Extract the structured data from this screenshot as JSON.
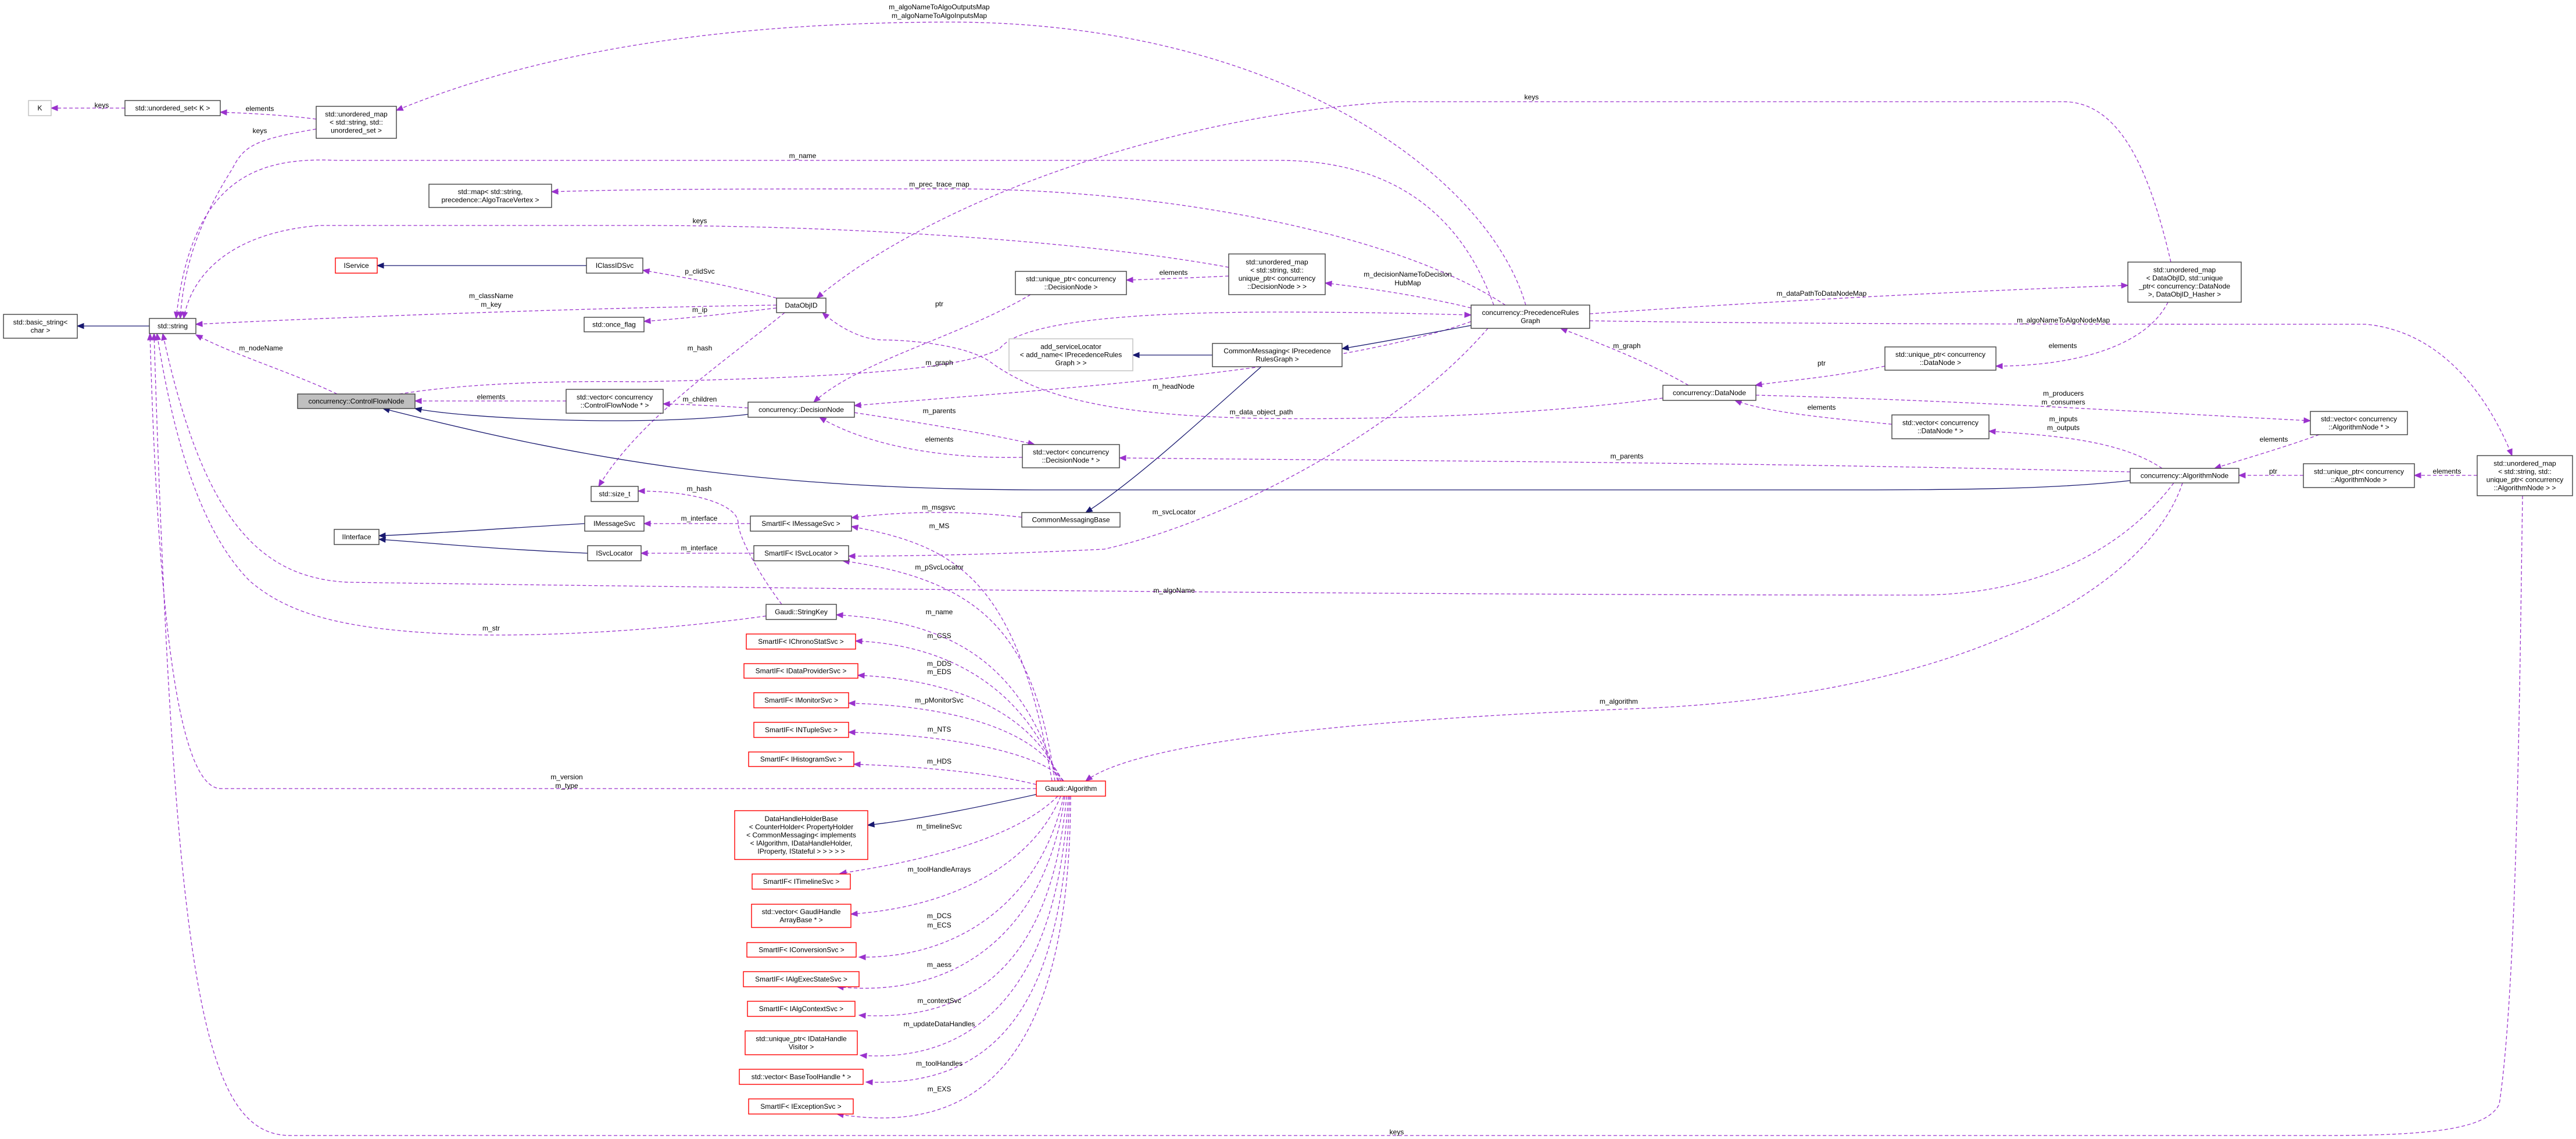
{
  "colors": {
    "usage_edge": "#9a32cd",
    "inheritance_edge": "#191970",
    "undocumented_border": "#ff0000",
    "focus_fill": "#bfbfbf"
  },
  "nodes": [
    {
      "label": [
        "K"
      ],
      "style": "gray"
    },
    {
      "label": [
        "std::unordered_set< K >"
      ],
      "style": "normal"
    },
    {
      "label": [
        "std::unordered_map",
        "< std::string, std::",
        "unordered_set >"
      ],
      "style": "normal"
    },
    {
      "label": [
        "std::map< std::string,",
        "precedence::AlgoTraceVertex >"
      ],
      "style": "normal"
    },
    {
      "label": [
        "IService"
      ],
      "style": "red"
    },
    {
      "label": [
        "IClassIDSvc"
      ],
      "style": "normal"
    },
    {
      "label": [
        "std::basic_string<",
        "char >"
      ],
      "style": "normal"
    },
    {
      "label": [
        "std::string"
      ],
      "style": "normal"
    },
    {
      "label": [
        "std::once_flag"
      ],
      "style": "normal"
    },
    {
      "label": [
        "DataObjID"
      ],
      "style": "normal"
    },
    {
      "label": [
        "std::unique_ptr< concurrency",
        "::DecisionNode >"
      ],
      "style": "normal"
    },
    {
      "label": [
        "std::unordered_map",
        "< std::string, std::",
        "unique_ptr< concurrency",
        "::DecisionNode > >"
      ],
      "style": "normal"
    },
    {
      "label": [
        "concurrency::PrecedenceRules",
        "Graph"
      ],
      "style": "normal"
    },
    {
      "label": [
        "std::unordered_map",
        "< DataObjID, std::unique",
        "_ptr< concurrency::DataNode",
        ">, DataObjID_Hasher >"
      ],
      "style": "normal"
    },
    {
      "label": [
        "add_serviceLocator",
        "< add_name< IPrecedenceRules",
        "Graph > >"
      ],
      "style": "gray"
    },
    {
      "label": [
        "CommonMessaging< IPrecedence",
        "RulesGraph >"
      ],
      "style": "normal"
    },
    {
      "label": [
        "concurrency::ControlFlowNode"
      ],
      "style": "focus"
    },
    {
      "label": [
        "std::vector< concurrency",
        "::ControlFlowNode * >"
      ],
      "style": "normal"
    },
    {
      "label": [
        "concurrency::DecisionNode"
      ],
      "style": "normal"
    },
    {
      "label": [
        "std::vector< concurrency",
        "::DecisionNode * >"
      ],
      "style": "normal"
    },
    {
      "label": [
        "concurrency::DataNode"
      ],
      "style": "normal"
    },
    {
      "label": [
        "std::unique_ptr< concurrency",
        "::DataNode >"
      ],
      "style": "normal"
    },
    {
      "label": [
        "std::vector< concurrency",
        "::DataNode * >"
      ],
      "style": "normal"
    },
    {
      "label": [
        "std::vector< concurrency",
        "::AlgorithmNode * >"
      ],
      "style": "normal"
    },
    {
      "label": [
        "concurrency::AlgorithmNode"
      ],
      "style": "normal"
    },
    {
      "label": [
        "std::unique_ptr< concurrency",
        "::AlgorithmNode >"
      ],
      "style": "normal"
    },
    {
      "label": [
        "std::unordered_map",
        "< std::string, std::",
        "unique_ptr< concurrency",
        "::AlgorithmNode > >"
      ],
      "style": "normal"
    },
    {
      "label": [
        "std::size_t"
      ],
      "style": "normal"
    },
    {
      "label": [
        "IInterface"
      ],
      "style": "normal"
    },
    {
      "label": [
        "IMessageSvc"
      ],
      "style": "normal"
    },
    {
      "label": [
        "ISvcLocator"
      ],
      "style": "normal"
    },
    {
      "label": [
        "SmartIF< IMessageSvc >"
      ],
      "style": "normal"
    },
    {
      "label": [
        "SmartIF< ISvcLocator >"
      ],
      "style": "normal"
    },
    {
      "label": [
        "CommonMessagingBase"
      ],
      "style": "normal"
    },
    {
      "label": [
        "Gaudi::StringKey"
      ],
      "style": "normal"
    },
    {
      "label": [
        "SmartIF< IChronoStatSvc >"
      ],
      "style": "red"
    },
    {
      "label": [
        "SmartIF< IDataProviderSvc >"
      ],
      "style": "red"
    },
    {
      "label": [
        "SmartIF< IMonitorSvc >"
      ],
      "style": "red"
    },
    {
      "label": [
        "SmartIF< INTupleSvc >"
      ],
      "style": "red"
    },
    {
      "label": [
        "SmartIF< IHistogramSvc >"
      ],
      "style": "red"
    },
    {
      "label": [
        "Gaudi::Algorithm"
      ],
      "style": "red"
    },
    {
      "label": [
        "DataHandleHolderBase",
        "< CounterHolder< PropertyHolder",
        "< CommonMessaging< implements",
        "< IAlgorithm, IDataHandleHolder,",
        "IProperty, IStateful > > > > >"
      ],
      "style": "red"
    },
    {
      "label": [
        "SmartIF< ITimelineSvc >"
      ],
      "style": "red"
    },
    {
      "label": [
        "std::vector< GaudiHandle",
        "ArrayBase * >"
      ],
      "style": "red"
    },
    {
      "label": [
        "SmartIF< IConversionSvc >"
      ],
      "style": "red"
    },
    {
      "label": [
        "SmartIF< IAlgExecStateSvc >"
      ],
      "style": "red"
    },
    {
      "label": [
        "SmartIF< IAlgContextSvc >"
      ],
      "style": "red"
    },
    {
      "label": [
        "std::unique_ptr< IDataHandle",
        "Visitor >"
      ],
      "style": "red"
    },
    {
      "label": [
        "std::vector< BaseToolHandle * >"
      ],
      "style": "red"
    },
    {
      "label": [
        "SmartIF< IExceptionSvc >"
      ],
      "style": "red"
    }
  ],
  "edges": [
    {
      "kind": "usage",
      "label": [
        "keys"
      ]
    },
    {
      "kind": "usage",
      "label": [
        "elements"
      ]
    },
    {
      "kind": "usage",
      "label": [
        "keys"
      ]
    },
    {
      "kind": "usage",
      "label": [
        "m_algoNameToAlgoOutputsMap",
        "m_algoNameToAlgoInputsMap"
      ]
    },
    {
      "kind": "usage",
      "label": [
        "m_name"
      ]
    },
    {
      "kind": "usage",
      "label": [
        "m_prec_trace_map"
      ]
    },
    {
      "kind": "usage",
      "label": [
        "keys"
      ]
    },
    {
      "kind": "usage",
      "label": [
        "keys"
      ]
    },
    {
      "kind": "usage",
      "label": [
        "m_decisionNameToDecision",
        "HubMap"
      ]
    },
    {
      "kind": "usage",
      "label": [
        "elements"
      ]
    },
    {
      "kind": "usage",
      "label": [
        "ptr"
      ]
    },
    {
      "kind": "usage",
      "label": [
        "p_clidSvc"
      ]
    },
    {
      "kind": "usage",
      "label": [
        "m_className",
        "m_key"
      ]
    },
    {
      "kind": "usage",
      "label": [
        "m_ip"
      ]
    },
    {
      "kind": "usage",
      "label": [
        "m_hash"
      ]
    },
    {
      "kind": "usage",
      "label": [
        "m_hash"
      ]
    },
    {
      "kind": "usage",
      "label": [
        "m_graph"
      ]
    },
    {
      "kind": "usage",
      "label": [
        "elements"
      ]
    },
    {
      "kind": "usage",
      "label": [
        "m_nodeName"
      ]
    },
    {
      "kind": "usage",
      "label": [
        "m_children"
      ]
    },
    {
      "kind": "usage",
      "label": [
        "m_parents"
      ]
    },
    {
      "kind": "usage",
      "label": [
        "elements"
      ]
    },
    {
      "kind": "usage",
      "label": [
        "m_headNode"
      ]
    },
    {
      "kind": "usage",
      "label": [
        "m_data_object_path"
      ]
    },
    {
      "kind": "inheritance",
      "label": []
    },
    {
      "kind": "inheritance",
      "label": []
    },
    {
      "kind": "inheritance",
      "label": []
    },
    {
      "kind": "inheritance",
      "label": []
    },
    {
      "kind": "inheritance",
      "label": []
    },
    {
      "kind": "usage",
      "label": [
        "m_graph"
      ]
    },
    {
      "kind": "usage",
      "label": [
        "ptr"
      ]
    },
    {
      "kind": "usage",
      "label": [
        "elements"
      ]
    },
    {
      "kind": "usage",
      "label": [
        "m_dataPathToDataNodeMap"
      ]
    },
    {
      "kind": "usage",
      "label": [
        "elements"
      ]
    },
    {
      "kind": "usage",
      "label": [
        "m_algoNameToAlgoNodeMap"
      ]
    },
    {
      "kind": "usage",
      "label": [
        "m_producers",
        "m_consumers"
      ]
    },
    {
      "kind": "usage",
      "label": [
        "m_inputs",
        "m_outputs"
      ]
    },
    {
      "kind": "usage",
      "label": [
        "elements"
      ]
    },
    {
      "kind": "usage",
      "label": [
        "ptr"
      ]
    },
    {
      "kind": "usage",
      "label": [
        "elements"
      ]
    },
    {
      "kind": "usage",
      "label": [
        "m_parents"
      ]
    },
    {
      "kind": "usage",
      "label": [
        "m_algoName"
      ]
    },
    {
      "kind": "usage",
      "label": [
        "m_algorithm"
      ]
    },
    {
      "kind": "usage",
      "label": [
        "keys"
      ]
    },
    {
      "kind": "usage",
      "label": [
        "m_svcLocator"
      ]
    },
    {
      "kind": "usage",
      "label": [
        "m_msgsvc"
      ]
    },
    {
      "kind": "usage",
      "label": [
        "m_MS"
      ]
    },
    {
      "kind": "usage",
      "label": [
        "m_pSvcLocator"
      ]
    },
    {
      "kind": "inheritance",
      "label": []
    },
    {
      "kind": "inheritance",
      "label": []
    },
    {
      "kind": "usage",
      "label": [
        "m_interface"
      ]
    },
    {
      "kind": "usage",
      "label": [
        "m_interface"
      ]
    },
    {
      "kind": "usage",
      "label": [
        "m_str"
      ]
    },
    {
      "kind": "usage",
      "label": [
        "m_name"
      ]
    },
    {
      "kind": "usage",
      "label": [
        "m_CSS"
      ]
    },
    {
      "kind": "usage",
      "label": [
        "m_DDS",
        "m_EDS"
      ]
    },
    {
      "kind": "usage",
      "label": [
        "m_pMonitorSvc"
      ]
    },
    {
      "kind": "usage",
      "label": [
        "m_NTS"
      ]
    },
    {
      "kind": "usage",
      "label": [
        "m_HDS"
      ]
    },
    {
      "kind": "inheritance",
      "label": []
    },
    {
      "kind": "usage",
      "label": [
        "m_timelineSvc"
      ]
    },
    {
      "kind": "usage",
      "label": [
        "m_toolHandleArrays"
      ]
    },
    {
      "kind": "usage",
      "label": [
        "m_DCS",
        "m_ECS"
      ]
    },
    {
      "kind": "usage",
      "label": [
        "m_aess"
      ]
    },
    {
      "kind": "usage",
      "label": [
        "m_contextSvc"
      ]
    },
    {
      "kind": "usage",
      "label": [
        "m_updateDataHandles"
      ]
    },
    {
      "kind": "usage",
      "label": [
        "m_toolHandles"
      ]
    },
    {
      "kind": "usage",
      "label": [
        "m_EXS"
      ]
    },
    {
      "kind": "usage",
      "label": [
        "m_version",
        "m_type"
      ]
    },
    {
      "kind": "inheritance",
      "label": []
    },
    {
      "kind": "inheritance",
      "label": []
    }
  ]
}
